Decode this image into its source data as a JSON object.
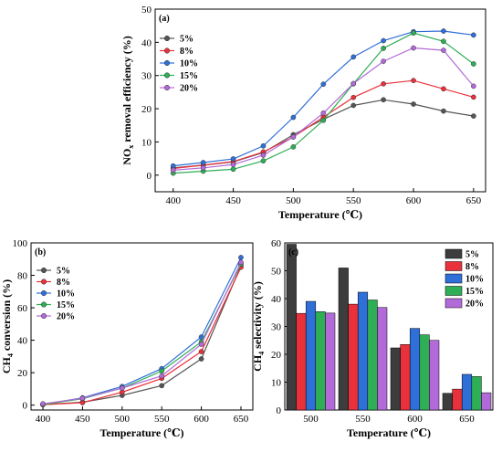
{
  "chart_data": [
    {
      "type": "line",
      "panel_label": "(a)",
      "ylabel_parts": [
        "NO",
        "x",
        " removal efficiency (%)"
      ],
      "xlabel": "Temperature (℃)",
      "xlim": [
        385,
        660
      ],
      "ylim": [
        -5,
        50
      ],
      "xticks": [
        400,
        450,
        500,
        550,
        600,
        650
      ],
      "yticks": [
        0,
        10,
        20,
        30,
        40,
        50
      ],
      "x": [
        400,
        425,
        450,
        475,
        500,
        525,
        550,
        575,
        600,
        625,
        650
      ],
      "series": [
        {
          "name": "5%",
          "color": "#555555",
          "values": [
            2.2,
            3.0,
            4.0,
            6.8,
            12.2,
            16.8,
            21.0,
            22.7,
            21.4,
            19.3,
            17.8
          ]
        },
        {
          "name": "8%",
          "color": "#e8313a",
          "values": [
            2.0,
            3.0,
            4.1,
            7.0,
            11.5,
            17.5,
            23.4,
            27.5,
            28.5,
            26.0,
            23.5
          ]
        },
        {
          "name": "10%",
          "color": "#2f6fd8",
          "values": [
            2.8,
            3.8,
            4.9,
            8.8,
            17.4,
            27.4,
            35.6,
            40.5,
            43.2,
            43.4,
            42.2
          ]
        },
        {
          "name": "15%",
          "color": "#2eae55",
          "values": [
            0.6,
            1.2,
            1.8,
            4.3,
            8.5,
            16.5,
            27.5,
            38.2,
            42.8,
            40.3,
            33.5
          ]
        },
        {
          "name": "20%",
          "color": "#b36ad9",
          "values": [
            1.5,
            2.2,
            3.2,
            6.0,
            11.5,
            18.7,
            27.6,
            34.3,
            38.3,
            37.6,
            26.8
          ]
        }
      ]
    },
    {
      "type": "line",
      "panel_label": "(b)",
      "ylabel_parts": [
        "CH",
        "4",
        " conversion (%)"
      ],
      "xlabel": "Temperature (℃)",
      "xlim": [
        385,
        665
      ],
      "ylim": [
        -3,
        100
      ],
      "xticks": [
        400,
        450,
        500,
        550,
        600,
        650
      ],
      "yticks": [
        0,
        20,
        40,
        60,
        80,
        100
      ],
      "x": [
        400,
        450,
        500,
        550,
        600,
        650
      ],
      "series": [
        {
          "name": "5%",
          "color": "#555555",
          "values": [
            0.3,
            1.8,
            6.0,
            12.0,
            28.5,
            86.0
          ]
        },
        {
          "name": "8%",
          "color": "#e8313a",
          "values": [
            0.3,
            1.5,
            8.0,
            16.5,
            33.0,
            85.0
          ]
        },
        {
          "name": "10%",
          "color": "#2f6fd8",
          "values": [
            0.5,
            4.5,
            11.5,
            22.5,
            42.0,
            91.0
          ]
        },
        {
          "name": "15%",
          "color": "#2eae55",
          "values": [
            0.4,
            4.0,
            10.5,
            21.0,
            39.0,
            87.0
          ]
        },
        {
          "name": "20%",
          "color": "#b36ad9",
          "values": [
            0.8,
            4.2,
            10.5,
            18.0,
            37.5,
            88.0
          ]
        }
      ]
    },
    {
      "type": "bar",
      "panel_label": "(c)",
      "ylabel_parts": [
        "CH",
        "4",
        " selectivity (%)"
      ],
      "xlabel": "Temperature (℃)",
      "ylim": [
        0,
        60
      ],
      "yticks": [
        0,
        10,
        20,
        30,
        40,
        50,
        60
      ],
      "categories": [
        "500",
        "550",
        "600",
        "650"
      ],
      "series": [
        {
          "name": "5%",
          "color": "#3d3d3d",
          "values": [
            59.5,
            51.0,
            22.3,
            6.0
          ]
        },
        {
          "name": "8%",
          "color": "#e8313a",
          "values": [
            34.7,
            38.0,
            23.5,
            7.5
          ]
        },
        {
          "name": "10%",
          "color": "#2f6fd8",
          "values": [
            39.0,
            42.3,
            29.3,
            12.8
          ]
        },
        {
          "name": "15%",
          "color": "#2eae55",
          "values": [
            35.3,
            39.5,
            27.0,
            12.0
          ]
        },
        {
          "name": "20%",
          "color": "#b36ad9",
          "values": [
            34.8,
            36.8,
            25.0,
            6.2
          ]
        }
      ]
    }
  ]
}
